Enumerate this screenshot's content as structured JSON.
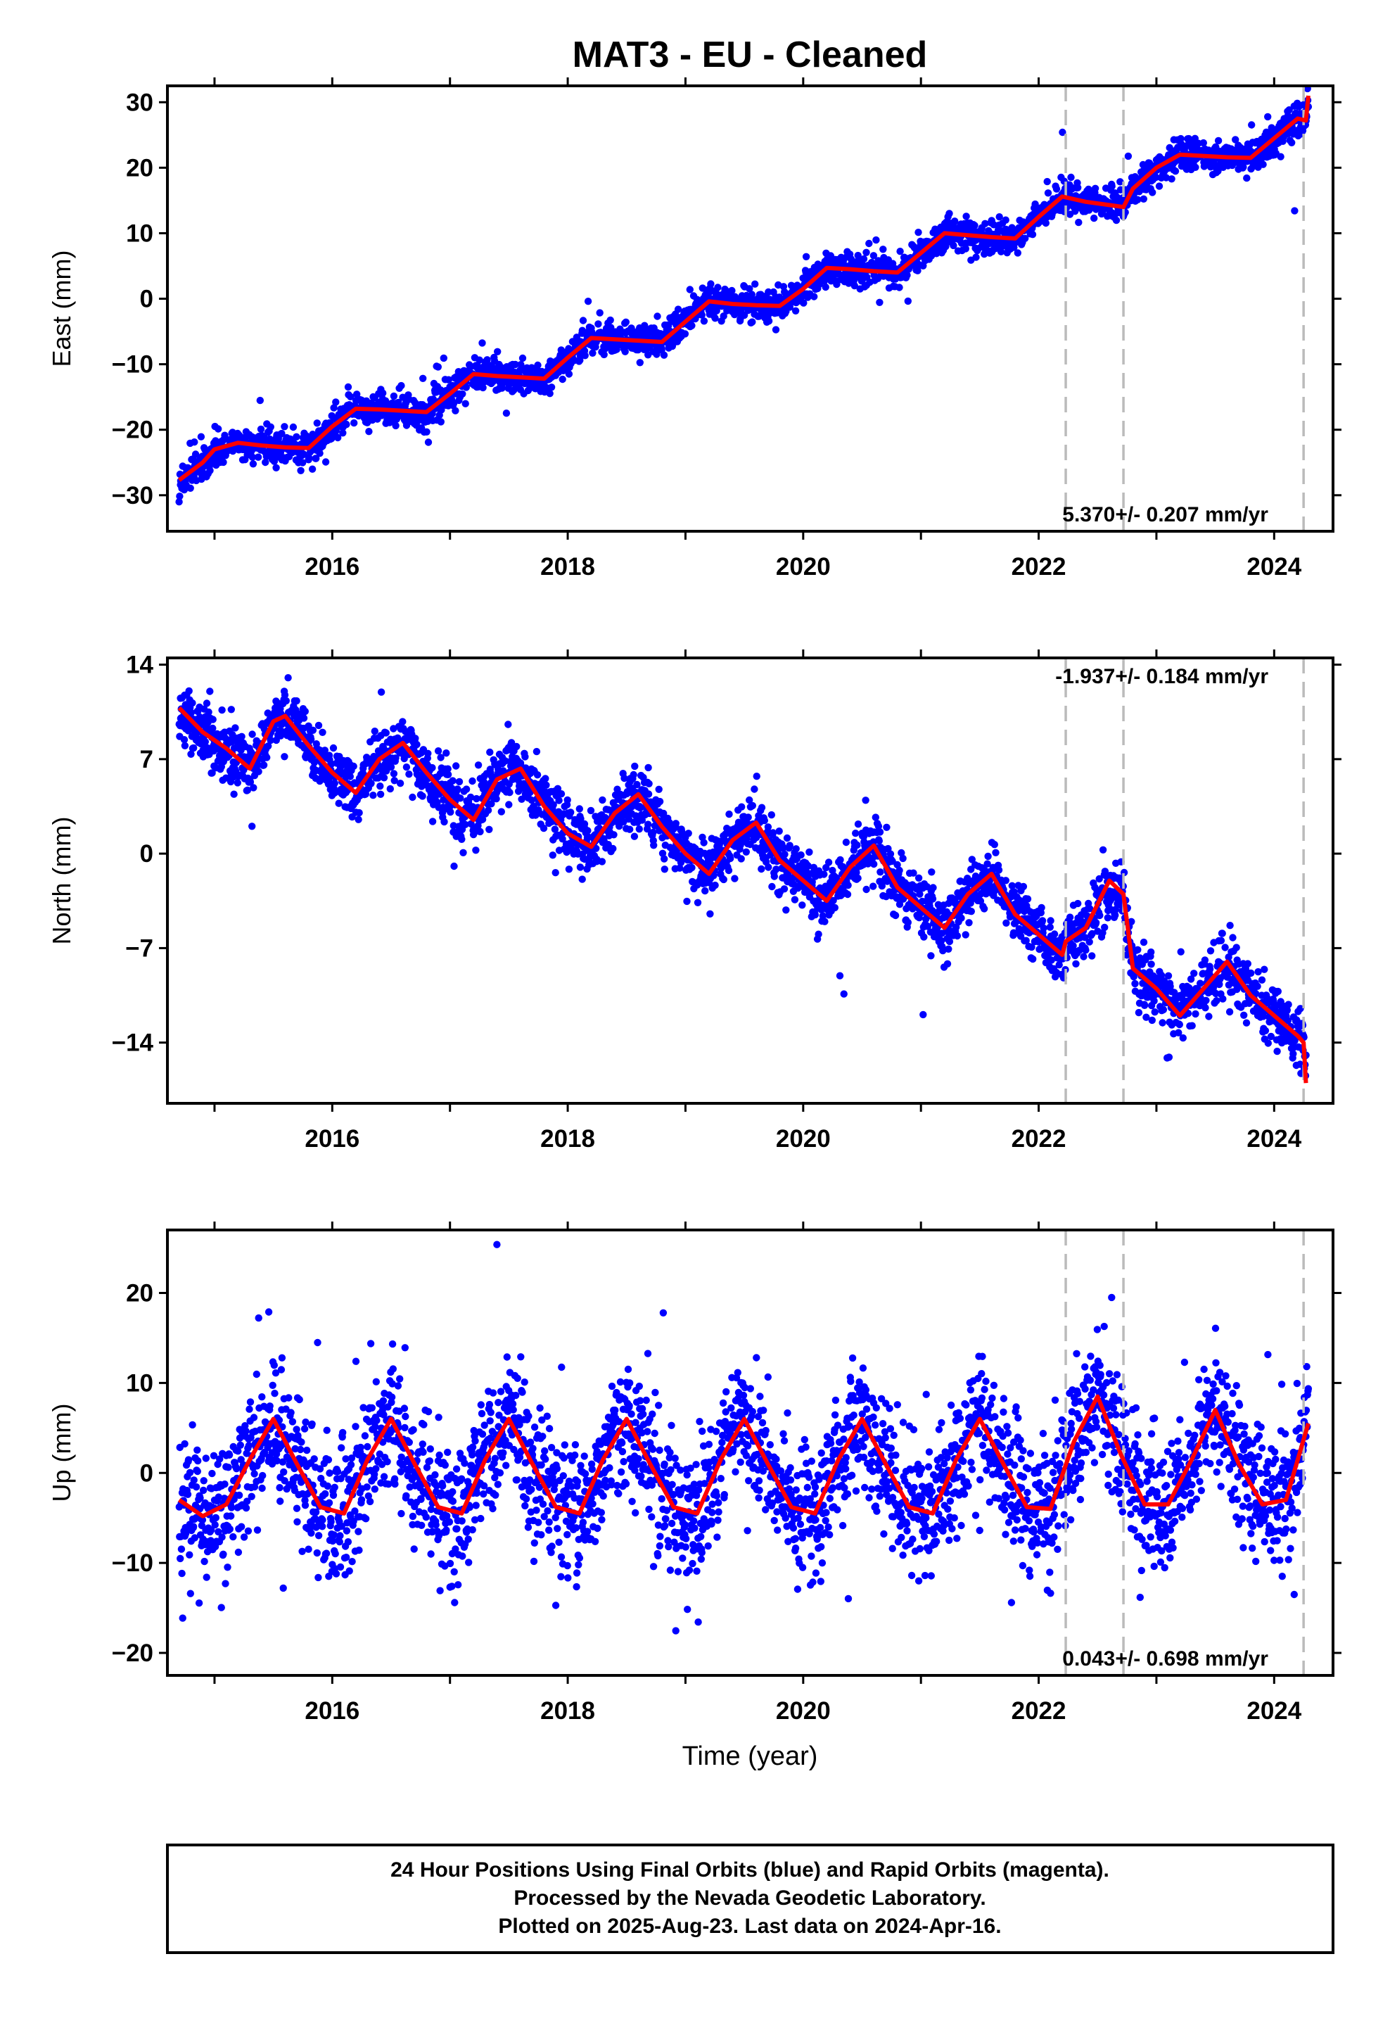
{
  "title": "MAT3  - EU - Cleaned",
  "x_axis_label": "Time (year)",
  "footer": {
    "line1": "24 Hour Positions Using Final Orbits (blue) and Rapid Orbits (magenta).",
    "line2": "Processed by the Nevada Geodetic Laboratory.",
    "line3": "Plotted on 2025-Aug-23. Last data on 2024-Apr-16."
  },
  "colors": {
    "points": "#0000ff",
    "model": "#ff0000",
    "events": "#bbbbbb",
    "frame": "#000000"
  },
  "chart_data": [
    {
      "type": "scatter",
      "name": "east",
      "ylabel": "East (mm)",
      "xlim": [
        2014.6,
        2024.5
      ],
      "ylim": [
        -35.5,
        32.5
      ],
      "yticks": [
        30,
        20,
        10,
        0,
        -10,
        -20,
        -30
      ],
      "ytick_labels": [
        "30",
        "20",
        "10",
        "0",
        "−10",
        "−20",
        "−30"
      ],
      "xticks": [
        2016,
        2018,
        2020,
        2022,
        2024
      ],
      "xtick_labels": [
        "2016",
        "2018",
        "2020",
        "2022",
        "2024"
      ],
      "xticks_minor": [
        2015,
        2016,
        2017,
        2018,
        2019,
        2020,
        2021,
        2022,
        2023,
        2024
      ],
      "rate_label": "5.370+/- 0.207 mm/yr",
      "rate_position": "bottom-right",
      "event_lines_x": [
        2022.23,
        2022.72,
        2024.25
      ],
      "model_x": [
        2014.7,
        2014.9,
        2015.0,
        2015.2,
        2015.4,
        2015.6,
        2015.8,
        2016.0,
        2016.2,
        2016.4,
        2016.6,
        2016.8,
        2017.0,
        2017.2,
        2017.4,
        2017.6,
        2017.8,
        2018.0,
        2018.2,
        2018.4,
        2018.6,
        2018.8,
        2019.0,
        2019.2,
        2019.4,
        2019.6,
        2019.8,
        2020.0,
        2020.2,
        2020.4,
        2020.6,
        2020.8,
        2021.0,
        2021.2,
        2021.4,
        2021.6,
        2021.8,
        2022.0,
        2022.2,
        2022.4,
        2022.6,
        2022.72,
        2022.8,
        2023.0,
        2023.2,
        2023.4,
        2023.6,
        2023.8,
        2024.0,
        2024.2,
        2024.27,
        2024.29
      ],
      "model_y": [
        -27.7,
        -25.0,
        -23.0,
        -22.0,
        -22.4,
        -22.7,
        -22.8,
        -19.5,
        -16.8,
        -16.9,
        -17.1,
        -17.3,
        -14.5,
        -11.5,
        -11.8,
        -12.0,
        -12.2,
        -9.0,
        -6.0,
        -6.2,
        -6.4,
        -6.6,
        -3.5,
        -0.4,
        -0.8,
        -1.0,
        -1.1,
        1.5,
        4.7,
        4.5,
        4.2,
        4.0,
        7.0,
        10.0,
        9.7,
        9.4,
        9.2,
        12.5,
        15.6,
        14.8,
        14.3,
        14.0,
        16.8,
        20.0,
        22.0,
        21.8,
        21.6,
        21.5,
        24.5,
        27.5,
        27.2,
        31.0
      ],
      "points_spec": {
        "count": 2900,
        "noise_mm": 1.2,
        "outlier_frac": 0.02,
        "outlier_mm": 4
      }
    },
    {
      "type": "scatter",
      "name": "north",
      "ylabel": "North (mm)",
      "xlim": [
        2014.6,
        2024.5
      ],
      "ylim": [
        -18.5,
        14.5
      ],
      "yticks": [
        14,
        7,
        0,
        -7,
        -14
      ],
      "ytick_labels": [
        "14",
        "7",
        "0",
        "−7",
        "−14"
      ],
      "xticks": [
        2016,
        2018,
        2020,
        2022,
        2024
      ],
      "xtick_labels": [
        "2016",
        "2018",
        "2020",
        "2022",
        "2024"
      ],
      "xticks_minor": [
        2015,
        2016,
        2017,
        2018,
        2019,
        2020,
        2021,
        2022,
        2023,
        2024
      ],
      "rate_label": "-1.937+/- 0.184 mm/yr",
      "rate_position": "top-right",
      "event_lines_x": [
        2022.23,
        2022.72,
        2024.25
      ],
      "model_x": [
        2014.7,
        2014.9,
        2015.1,
        2015.3,
        2015.5,
        2015.6,
        2015.8,
        2016.0,
        2016.2,
        2016.4,
        2016.6,
        2016.8,
        2017.0,
        2017.2,
        2017.4,
        2017.6,
        2017.8,
        2018.0,
        2018.2,
        2018.4,
        2018.6,
        2018.8,
        2019.0,
        2019.2,
        2019.4,
        2019.6,
        2019.8,
        2020.0,
        2020.2,
        2020.4,
        2020.6,
        2020.8,
        2021.0,
        2021.2,
        2021.4,
        2021.6,
        2021.8,
        2022.0,
        2022.2,
        2022.23,
        2022.4,
        2022.6,
        2022.72,
        2022.8,
        2023.0,
        2023.2,
        2023.4,
        2023.6,
        2023.8,
        2024.0,
        2024.2,
        2024.25,
        2024.27
      ],
      "model_y": [
        10.8,
        9.0,
        7.8,
        6.3,
        9.8,
        10.2,
        8.0,
        6.0,
        4.5,
        7.0,
        8.2,
        6.0,
        4.0,
        2.5,
        5.5,
        6.3,
        3.5,
        1.5,
        0.5,
        3.0,
        4.4,
        2.0,
        0.0,
        -1.5,
        1.0,
        2.3,
        -0.5,
        -2.0,
        -3.5,
        -1.0,
        0.6,
        -2.5,
        -4.0,
        -5.5,
        -3.0,
        -1.5,
        -4.5,
        -6.0,
        -7.5,
        -6.5,
        -5.5,
        -2.0,
        -3.0,
        -8.5,
        -10.0,
        -12.0,
        -10.0,
        -8.0,
        -10.5,
        -12.0,
        -13.5,
        -14.0,
        -17.0
      ],
      "points_spec": {
        "count": 2900,
        "noise_mm": 1.1,
        "outlier_frac": 0.02,
        "outlier_mm": 3
      }
    },
    {
      "type": "scatter",
      "name": "up",
      "ylabel": "Up (mm)",
      "xlim": [
        2014.6,
        2024.5
      ],
      "ylim": [
        -22.5,
        27.0
      ],
      "yticks": [
        20,
        10,
        0,
        -10,
        -20
      ],
      "ytick_labels": [
        "20",
        "10",
        "0",
        "−10",
        "−20"
      ],
      "xticks": [
        2016,
        2018,
        2020,
        2022,
        2024
      ],
      "xtick_labels": [
        "2016",
        "2018",
        "2020",
        "2022",
        "2024"
      ],
      "xticks_minor": [
        2015,
        2016,
        2017,
        2018,
        2019,
        2020,
        2021,
        2022,
        2023,
        2024
      ],
      "rate_label": "0.043+/- 0.698 mm/yr",
      "rate_position": "bottom-right",
      "event_lines_x": [
        2022.23,
        2022.72,
        2024.25
      ],
      "model_x": [
        2014.7,
        2014.9,
        2015.1,
        2015.3,
        2015.5,
        2015.7,
        2015.9,
        2016.1,
        2016.3,
        2016.5,
        2016.7,
        2016.9,
        2017.1,
        2017.3,
        2017.5,
        2017.7,
        2017.9,
        2018.1,
        2018.3,
        2018.5,
        2018.7,
        2018.9,
        2019.1,
        2019.3,
        2019.5,
        2019.7,
        2019.9,
        2020.1,
        2020.3,
        2020.5,
        2020.7,
        2020.9,
        2021.1,
        2021.3,
        2021.5,
        2021.7,
        2021.9,
        2022.1,
        2022.3,
        2022.5,
        2022.7,
        2022.9,
        2023.1,
        2023.3,
        2023.5,
        2023.7,
        2023.9,
        2024.1,
        2024.29
      ],
      "model_y": [
        -3.0,
        -4.8,
        -3.5,
        1.5,
        6.0,
        1.0,
        -3.8,
        -4.5,
        1.5,
        6.0,
        1.0,
        -3.8,
        -4.5,
        1.5,
        6.0,
        1.0,
        -3.8,
        -4.5,
        1.5,
        6.0,
        1.0,
        -3.8,
        -4.5,
        1.5,
        6.0,
        1.0,
        -3.8,
        -4.5,
        1.5,
        6.0,
        1.0,
        -3.8,
        -4.5,
        1.5,
        6.0,
        1.0,
        -3.8,
        -4.0,
        3.5,
        8.5,
        2.0,
        -3.5,
        -3.5,
        1.5,
        7.0,
        1.0,
        -3.5,
        -3.0,
        5.5
      ],
      "points_spec": {
        "count": 2900,
        "noise_mm": 3.6,
        "outlier_frac": 0.03,
        "outlier_mm": 8
      }
    }
  ]
}
